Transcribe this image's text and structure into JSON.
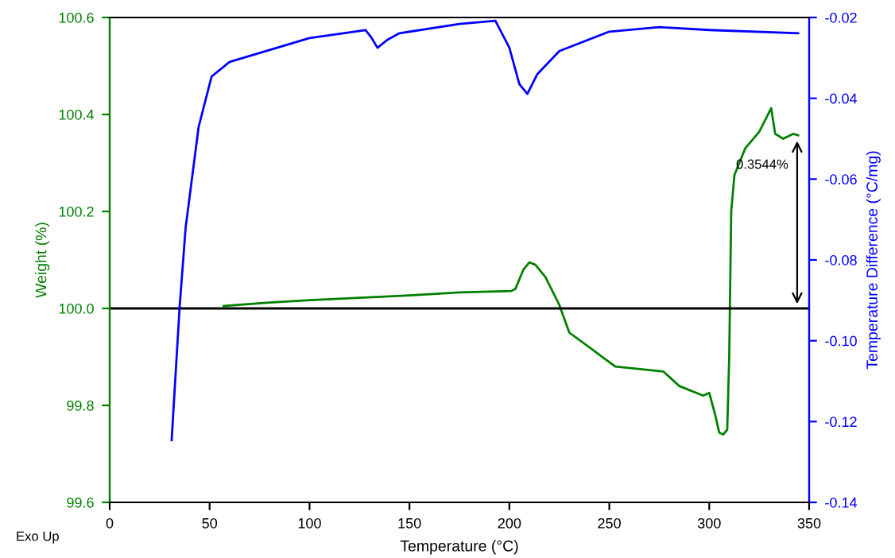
{
  "chart_data": {
    "type": "line",
    "xlabel": "Temperature (°C)",
    "ylabel": "Weight (%)",
    "y2label": "Temperature Difference (°C/mg)",
    "xlim": [
      0,
      350
    ],
    "xticks": [
      0,
      50,
      100,
      150,
      200,
      250,
      300,
      350
    ],
    "ylim": [
      99.6,
      100.6
    ],
    "yticks": [
      99.6,
      99.8,
      {
        "value": 100.0,
        "label": "100.0"
      },
      100.2,
      100.4,
      100.6
    ],
    "y2lim": [
      -0.14,
      -0.02
    ],
    "y2ticks": [
      -0.14,
      -0.12,
      {
        "value": -0.1,
        "label": "-0.10"
      },
      -0.08,
      -0.06,
      -0.04,
      -0.02
    ],
    "series": [
      {
        "color": "#008000",
        "x": [
          57,
          80,
          100,
          125,
          150,
          175,
          201,
          203,
          207,
          210,
          213,
          218,
          225,
          230,
          240,
          253,
          277,
          285,
          297,
          300,
          303,
          305,
          307,
          309,
          310,
          311,
          312.6,
          318,
          325,
          331,
          333,
          337,
          342,
          344.5
        ],
        "values": [
          100.005,
          100.012,
          100.017,
          100.022,
          100.027,
          100.033,
          100.036,
          100.04,
          100.08,
          100.095,
          100.09,
          100.065,
          100.007,
          99.95,
          99.92,
          99.88,
          99.87,
          99.84,
          99.82,
          99.826,
          99.78,
          99.744,
          99.74,
          99.75,
          99.9,
          100.2,
          100.275,
          100.33,
          100.364,
          100.413,
          100.36,
          100.35,
          100.36,
          100.357
        ]
      },
      {
        "color": "#0000ff",
        "axis": "y2",
        "x": [
          31,
          35,
          38,
          44.5,
          51,
          60,
          100,
          128,
          131,
          134,
          139,
          145,
          175,
          193,
          200,
          205,
          209,
          214,
          225,
          250,
          275,
          300,
          344.5
        ],
        "values": [
          -0.1246,
          -0.0916,
          -0.072,
          -0.0471,
          -0.0346,
          -0.031,
          -0.0251,
          -0.0231,
          -0.025,
          -0.0275,
          -0.0255,
          -0.0239,
          -0.0216,
          -0.0208,
          -0.0275,
          -0.0365,
          -0.0389,
          -0.034,
          -0.0283,
          -0.0235,
          -0.0224,
          -0.0231,
          -0.0239
        ]
      }
    ],
    "ref_lines": [
      {
        "axis": "y",
        "value": 100.0,
        "color": "#000000"
      }
    ],
    "annotations": [
      {
        "text": "0.3544%",
        "x": 344,
        "y": 100.3544
      },
      "Exo Up"
    ],
    "grid": false,
    "legend": false
  }
}
